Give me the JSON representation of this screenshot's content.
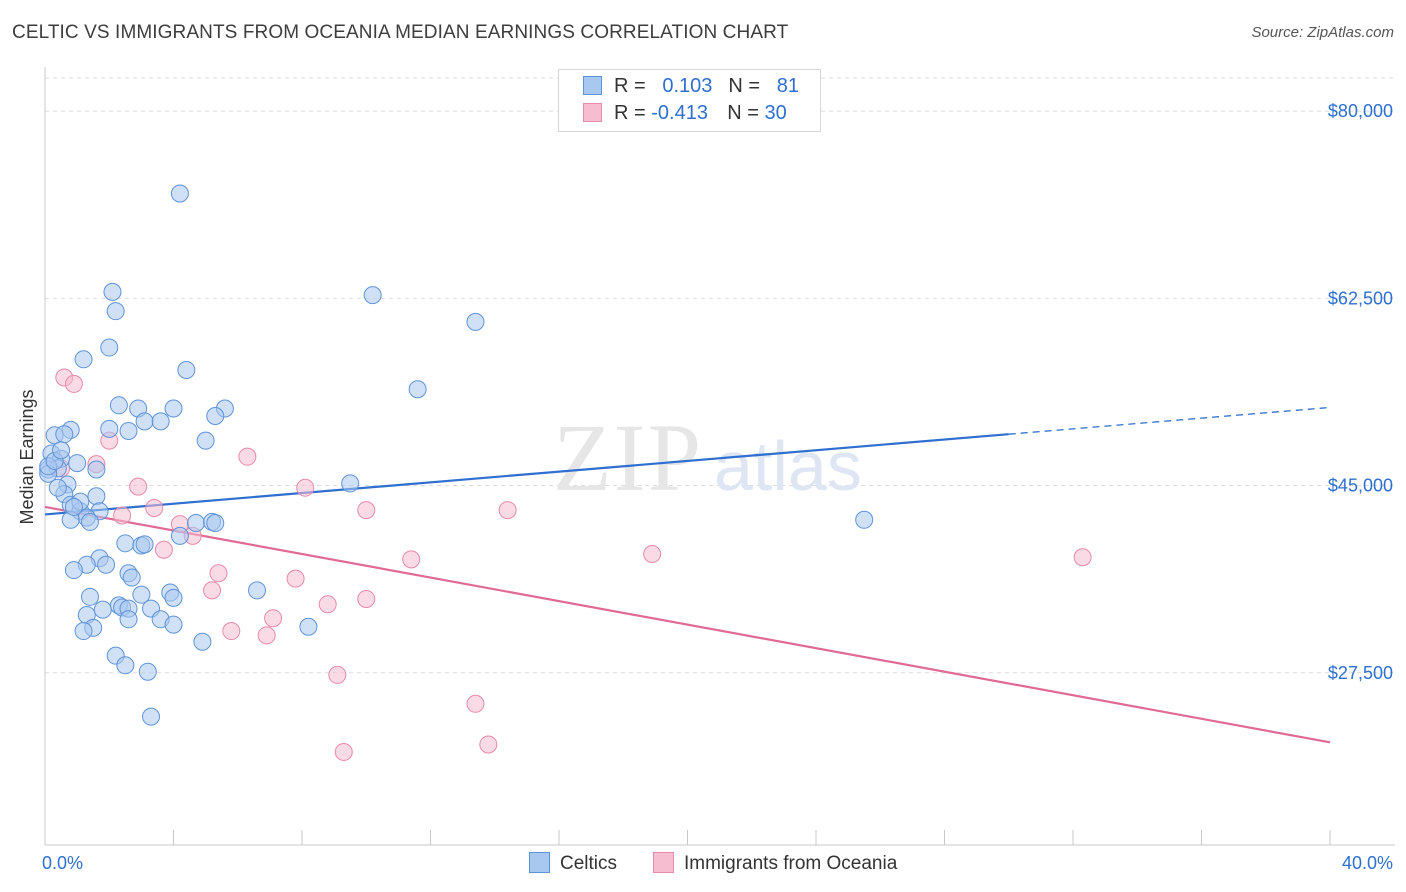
{
  "header": {
    "title": "CELTIC VS IMMIGRANTS FROM OCEANIA MEDIAN EARNINGS CORRELATION CHART",
    "source": "Source: ZipAtlas.com"
  },
  "stats_legend": {
    "rows": [
      {
        "r_label": "R =",
        "r_value": "0.103",
        "n_label": "N =",
        "n_value": "81"
      },
      {
        "r_label": "R =",
        "r_value": "-0.413",
        "n_label": "N =",
        "n_value": "30"
      }
    ]
  },
  "colors": {
    "celtic_fill": "#a9c8f0",
    "celtic_stroke": "#5e93d8",
    "celtic_line": "#2e6fd0",
    "oceania_fill": "#f6bccf",
    "oceania_stroke": "#e88aaa",
    "oceania_line": "#e06a95",
    "grid": "#dcdcdc",
    "axis_text": "#2e6fd0",
    "watermark": "#e6e6e6"
  },
  "chart_data": {
    "type": "scatter",
    "title": "CELTIC VS IMMIGRANTS FROM OCEANIA MEDIAN EARNINGS CORRELATION CHART",
    "xlabel": "",
    "ylabel": "Median Earnings",
    "xlim": [
      0,
      40
    ],
    "ylim": [
      10000,
      83000
    ],
    "x_tick_labels": [
      "0.0%",
      "40.0%"
    ],
    "y_ticks": [
      27500,
      45000,
      62500,
      80000
    ],
    "y_tick_labels": [
      "$27,500",
      "$45,000",
      "$62,500",
      "$80,000"
    ],
    "watermark": {
      "zip": "ZIP",
      "atlas": "atlas"
    },
    "series": [
      {
        "name": "Celtics",
        "r": 0.103,
        "n": 81,
        "trend": {
          "x_start": 0,
          "y_start": 42300,
          "x_solid_end": 30.0,
          "y_solid_end": 49800,
          "x_end": 40,
          "y_end": 52300
        },
        "points": [
          [
            4.2,
            72300
          ],
          [
            2.1,
            63100
          ],
          [
            10.2,
            62800
          ],
          [
            2.2,
            61300
          ],
          [
            13.4,
            60300
          ],
          [
            2.0,
            57900
          ],
          [
            1.2,
            56800
          ],
          [
            4.4,
            55800
          ],
          [
            11.6,
            54000
          ],
          [
            2.3,
            52500
          ],
          [
            2.9,
            52200
          ],
          [
            4.0,
            52200
          ],
          [
            5.6,
            52200
          ],
          [
            5.3,
            51500
          ],
          [
            3.1,
            51000
          ],
          [
            2.0,
            50300
          ],
          [
            0.8,
            50200
          ],
          [
            0.3,
            49700
          ],
          [
            0.6,
            49800
          ],
          [
            5.0,
            49200
          ],
          [
            0.2,
            48000
          ],
          [
            0.5,
            47500
          ],
          [
            0.1,
            46500
          ],
          [
            0.4,
            46600
          ],
          [
            1.6,
            46500
          ],
          [
            0.1,
            46100
          ],
          [
            0.7,
            45100
          ],
          [
            9.5,
            45200
          ],
          [
            0.6,
            44200
          ],
          [
            1.6,
            44000
          ],
          [
            0.8,
            43200
          ],
          [
            1.1,
            42600
          ],
          [
            1.7,
            42600
          ],
          [
            1.3,
            42000
          ],
          [
            0.8,
            41800
          ],
          [
            1.4,
            41600
          ],
          [
            4.7,
            41500
          ],
          [
            5.2,
            41600
          ],
          [
            5.3,
            41500
          ],
          [
            25.5,
            41800
          ],
          [
            4.2,
            40300
          ],
          [
            2.5,
            39600
          ],
          [
            3.0,
            39400
          ],
          [
            3.1,
            39500
          ],
          [
            1.7,
            38200
          ],
          [
            1.3,
            37600
          ],
          [
            1.9,
            37600
          ],
          [
            0.9,
            37100
          ],
          [
            2.6,
            36800
          ],
          [
            2.7,
            36400
          ],
          [
            6.6,
            35200
          ],
          [
            3.9,
            35000
          ],
          [
            3.0,
            34800
          ],
          [
            1.4,
            34600
          ],
          [
            4.0,
            34500
          ],
          [
            2.3,
            33800
          ],
          [
            2.4,
            33600
          ],
          [
            2.6,
            33500
          ],
          [
            1.8,
            33400
          ],
          [
            3.3,
            33500
          ],
          [
            1.3,
            32900
          ],
          [
            2.6,
            32500
          ],
          [
            3.6,
            32500
          ],
          [
            4.0,
            32000
          ],
          [
            1.5,
            31700
          ],
          [
            8.2,
            31800
          ],
          [
            1.2,
            31400
          ],
          [
            4.9,
            30400
          ],
          [
            2.2,
            29100
          ],
          [
            2.5,
            28200
          ],
          [
            3.2,
            27600
          ],
          [
            3.3,
            23400
          ],
          [
            0.1,
            46800
          ],
          [
            0.3,
            47300
          ],
          [
            1.0,
            47100
          ],
          [
            0.5,
            48300
          ],
          [
            2.6,
            50100
          ],
          [
            3.6,
            51000
          ],
          [
            0.4,
            44800
          ],
          [
            1.1,
            43500
          ],
          [
            0.9,
            43000
          ]
        ]
      },
      {
        "name": "Immigrants from Oceania",
        "r": -0.413,
        "n": 30,
        "trend": {
          "x_start": 0,
          "y_start": 43000,
          "x_end": 40,
          "y_end": 21000
        },
        "points": [
          [
            0.6,
            55100
          ],
          [
            0.9,
            54500
          ],
          [
            2.0,
            49200
          ],
          [
            6.3,
            47700
          ],
          [
            1.6,
            47000
          ],
          [
            0.5,
            46600
          ],
          [
            2.9,
            44900
          ],
          [
            8.1,
            44800
          ],
          [
            3.4,
            42900
          ],
          [
            10.0,
            42700
          ],
          [
            14.4,
            42700
          ],
          [
            2.4,
            42200
          ],
          [
            4.2,
            41400
          ],
          [
            4.6,
            40300
          ],
          [
            3.7,
            39000
          ],
          [
            11.4,
            38100
          ],
          [
            18.9,
            38600
          ],
          [
            32.3,
            38300
          ],
          [
            5.4,
            36800
          ],
          [
            7.8,
            36300
          ],
          [
            5.2,
            35200
          ],
          [
            10.0,
            34400
          ],
          [
            8.8,
            33900
          ],
          [
            7.1,
            32600
          ],
          [
            5.8,
            31400
          ],
          [
            6.9,
            31000
          ],
          [
            9.1,
            27300
          ],
          [
            13.4,
            24600
          ],
          [
            13.8,
            20800
          ],
          [
            9.3,
            20100
          ]
        ]
      }
    ]
  }
}
